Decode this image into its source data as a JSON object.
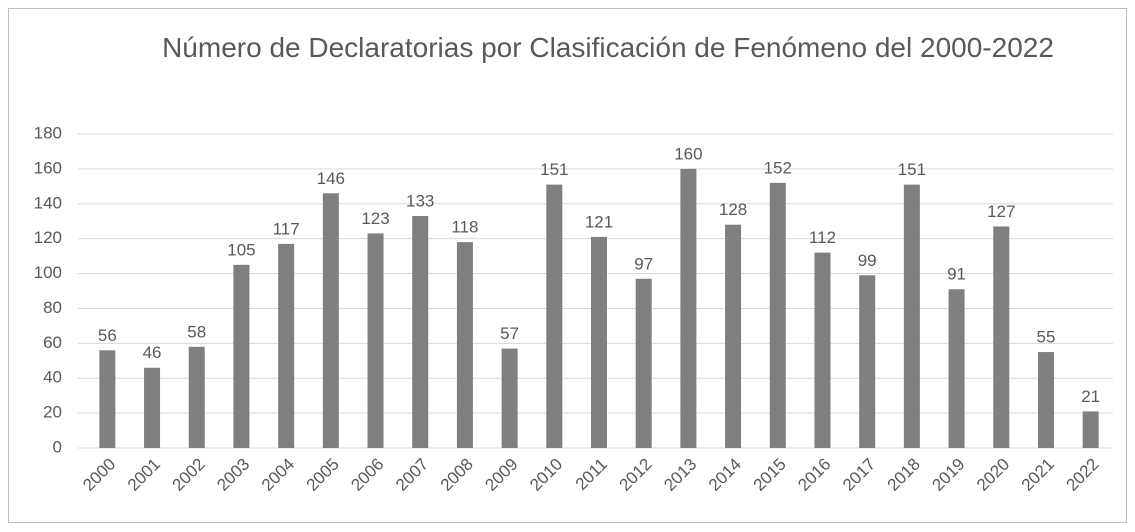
{
  "chart_data": {
    "type": "bar",
    "title": "Número de Declaratorias por Clasificación de Fenómeno del 2000-2022",
    "categories": [
      "2000",
      "2001",
      "2002",
      "2003",
      "2004",
      "2005",
      "2006",
      "2007",
      "2008",
      "2009",
      "2010",
      "2011",
      "2012",
      "2013",
      "2014",
      "2015",
      "2016",
      "2017",
      "2018",
      "2019",
      "2020",
      "2021",
      "2022"
    ],
    "values": [
      56,
      46,
      58,
      105,
      117,
      146,
      123,
      133,
      118,
      57,
      151,
      121,
      97,
      160,
      128,
      152,
      112,
      99,
      151,
      91,
      127,
      55,
      21
    ],
    "color": "#7f7f7f",
    "ylim": [
      0,
      180
    ],
    "yticks": [
      0,
      20,
      40,
      60,
      80,
      100,
      120,
      140,
      160,
      180
    ],
    "grid": true
  }
}
